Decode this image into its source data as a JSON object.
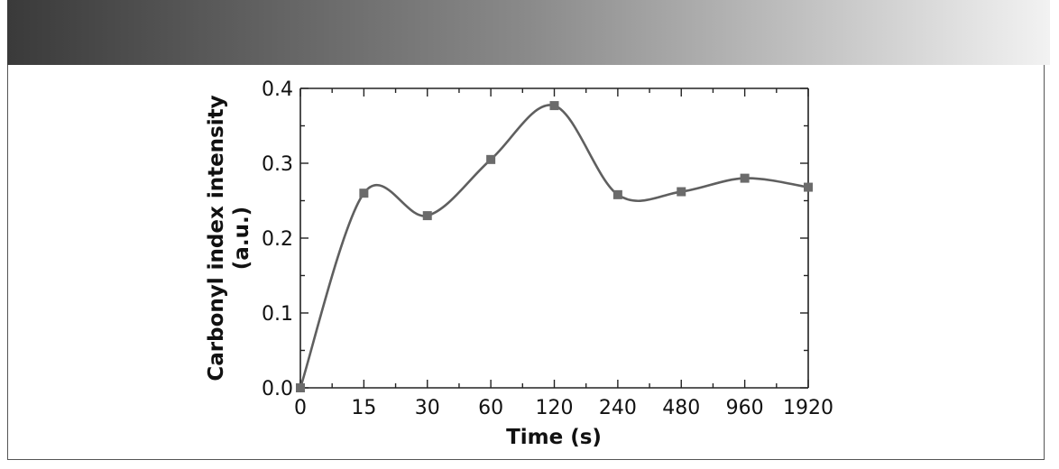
{
  "colors": {
    "line": "#5f5f5f",
    "marker": "#6b6b6b",
    "axis": "#222222"
  },
  "chart_data": {
    "type": "line",
    "categories": [
      "0",
      "15",
      "30",
      "60",
      "120",
      "240",
      "480",
      "960",
      "1920"
    ],
    "values": [
      0.0,
      0.26,
      0.23,
      0.305,
      0.377,
      0.258,
      0.262,
      0.28,
      0.268
    ],
    "xlabel": "Time (s)",
    "ylabel_line1": "Carbonyl index intensity",
    "ylabel_line2": "(a.u.)",
    "ylim": [
      0.0,
      0.4
    ],
    "yticks": [
      "0.0",
      "0.1",
      "0.2",
      "0.3",
      "0.4"
    ],
    "marker": "square",
    "smooth": true,
    "grid": false
  }
}
